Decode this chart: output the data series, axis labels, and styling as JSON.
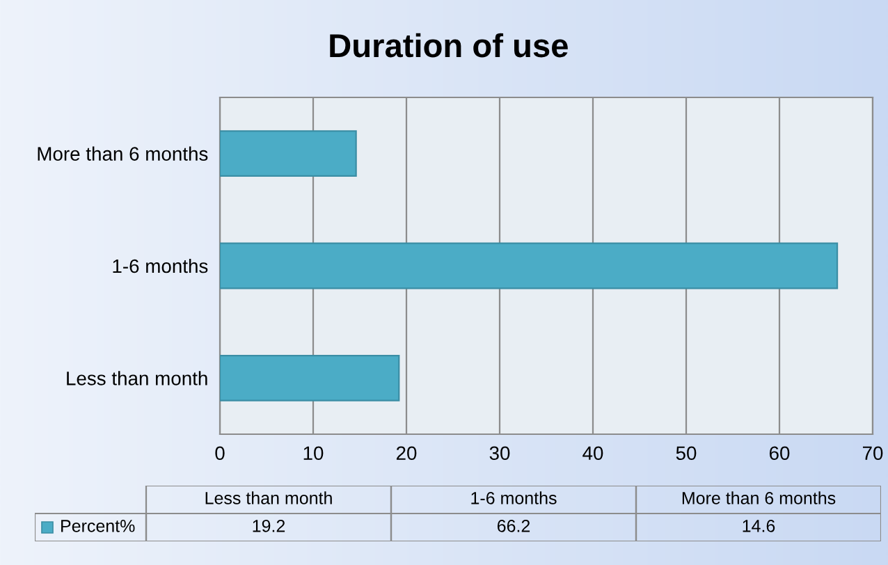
{
  "chart_data": {
    "type": "bar",
    "orientation": "horizontal",
    "title": "Duration of use",
    "categories": [
      "More than 6 months",
      "1-6 months",
      "Less than month"
    ],
    "series": [
      {
        "name": "Percent%",
        "color": "#4bacc6",
        "values": [
          14.6,
          66.2,
          19.2
        ]
      }
    ],
    "xlim": [
      0,
      70
    ],
    "xticks": [
      0,
      10,
      20,
      30,
      40,
      50,
      60,
      70
    ],
    "grid": "x",
    "annotations": [
      "19.2",
      "66.2",
      "14.6"
    ]
  }
}
